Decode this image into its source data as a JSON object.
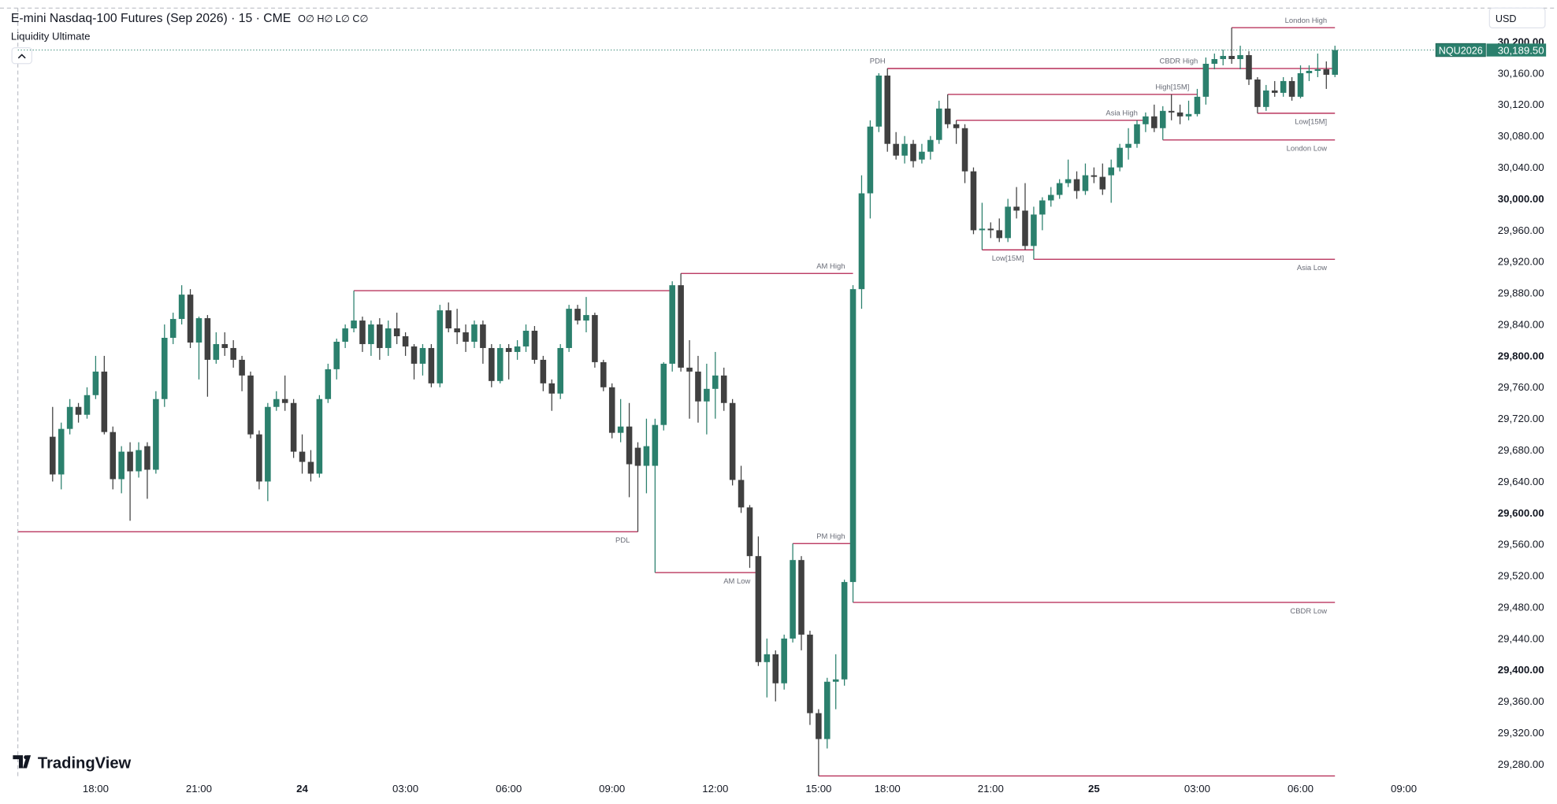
{
  "chart_data": {
    "type": "candlestick",
    "title": "E-mini Nasdaq-100 Futures (Sep 2026) · 15 · CME",
    "ohlc_legend": "O∅ H∅ L∅ C∅",
    "indicator": "Liquidity Ultimate",
    "currency": "USD",
    "brand": "TradingView",
    "up_color": "#2b806d",
    "down_color": "#404040",
    "level_color": "#b3234f",
    "open": [
      29697,
      29649,
      29707,
      29735,
      29725,
      29750,
      29780,
      29703,
      29643,
      29678,
      29653,
      29685,
      29655,
      29745,
      29823,
      29847,
      29878,
      29817,
      29848,
      29795,
      29815,
      29810,
      29795,
      29775,
      29700,
      29640,
      29735,
      29745,
      29740,
      29678,
      29665,
      29650,
      29745,
      29783,
      29818,
      29835,
      29845,
      29815,
      29840,
      29810,
      29835,
      29825,
      29812,
      29790,
      29810,
      29765,
      29858,
      29835,
      29830,
      29818,
      29840,
      29810,
      29768,
      29810,
      29805,
      29812,
      29832,
      29795,
      29765,
      29752,
      29810,
      29860,
      29845,
      29852,
      29792,
      29760,
      29702,
      29710,
      29683,
      29660,
      29660,
      29712,
      29790,
      29890,
      29785,
      29780,
      29742,
      29758,
      29775,
      29740,
      29642,
      29607,
      29545,
      29410,
      29420,
      29383,
      29440,
      29540,
      29445,
      29345,
      29312,
      29385,
      29388,
      29512,
      29885,
      30007,
      30092,
      30157,
      30070,
      30055,
      30070,
      30050,
      30060,
      30075,
      30115,
      30095,
      30090,
      30035,
      29960,
      29962,
      29960,
      29950,
      29990,
      29985,
      29940,
      29980,
      29998,
      30005,
      30020,
      30025,
      30010,
      30030,
      30028,
      30030,
      30040,
      30065,
      30070,
      30095,
      30105,
      30090,
      30112,
      30110,
      30105,
      30108,
      30130,
      30172,
      30178,
      30182,
      30178,
      30183,
      30152,
      30117,
      30138,
      30135,
      30150,
      30130,
      30160,
      30163,
      30165,
      30158
    ],
    "high": [
      29735,
      29715,
      29745,
      29740,
      29760,
      29800,
      29800,
      29710,
      29685,
      29690,
      29690,
      29690,
      29755,
      29840,
      29855,
      29890,
      29885,
      29850,
      29852,
      29830,
      29830,
      29820,
      29800,
      29780,
      29705,
      29740,
      29755,
      29775,
      29745,
      29700,
      29680,
      29750,
      29790,
      29822,
      29840,
      29883,
      29850,
      29845,
      29848,
      29845,
      29855,
      29830,
      29815,
      29815,
      29815,
      29865,
      29868,
      29860,
      29840,
      29845,
      29845,
      29815,
      29815,
      29815,
      29820,
      29840,
      29838,
      29800,
      29770,
      29815,
      29865,
      29865,
      29875,
      29855,
      29795,
      29765,
      29745,
      29740,
      29690,
      29720,
      29720,
      29792,
      29895,
      29905,
      29820,
      29800,
      29790,
      29805,
      29785,
      29745,
      29660,
      29610,
      29570,
      29440,
      29425,
      29445,
      29561,
      29545,
      29450,
      29350,
      29390,
      29420,
      29515,
      29890,
      30030,
      30100,
      30160,
      30166,
      30085,
      30080,
      30075,
      30070,
      30080,
      30125,
      30133,
      30100,
      30095,
      30040,
      29995,
      29970,
      29975,
      30000,
      30015,
      30020,
      29990,
      30002,
      30015,
      30025,
      30050,
      30035,
      30045,
      30040,
      30045,
      30050,
      30070,
      30090,
      30100,
      30110,
      30120,
      30118,
      30133,
      30120,
      30125,
      30140,
      30180,
      30185,
      30190,
      30218,
      30195,
      30188,
      30155,
      30145,
      30150,
      30155,
      30155,
      30170,
      30170,
      30185,
      30175,
      30195
    ],
    "low": [
      29640,
      29630,
      29700,
      29715,
      29720,
      29745,
      29700,
      29630,
      29625,
      29590,
      29645,
      29618,
      29650,
      29735,
      29815,
      29840,
      29810,
      29770,
      29748,
      29790,
      29800,
      29785,
      29755,
      29695,
      29630,
      29615,
      29730,
      29730,
      29670,
      29650,
      29640,
      29645,
      29740,
      29770,
      29810,
      29830,
      29805,
      29800,
      29795,
      29800,
      29815,
      29800,
      29770,
      29775,
      29760,
      29760,
      29830,
      29815,
      29805,
      29810,
      29790,
      29760,
      29765,
      29770,
      29795,
      29805,
      29790,
      29755,
      29730,
      29745,
      29805,
      29840,
      29830,
      29785,
      29755,
      29695,
      29690,
      29620,
      29576,
      29625,
      29524,
      29705,
      29780,
      29780,
      29720,
      29715,
      29700,
      29720,
      29730,
      29635,
      29600,
      29530,
      29405,
      29365,
      29360,
      29375,
      29435,
      29425,
      29330,
      29265,
      29300,
      29350,
      29380,
      29486,
      29860,
      29975,
      30085,
      30060,
      30050,
      30045,
      30040,
      30045,
      30050,
      30070,
      30090,
      30070,
      30020,
      29955,
      29935,
      29950,
      29945,
      29945,
      29975,
      29935,
      29923,
      29960,
      29990,
      30000,
      30015,
      30000,
      30005,
      30020,
      30005,
      29995,
      30035,
      30050,
      30065,
      30085,
      30085,
      30075,
      30100,
      30095,
      30100,
      30105,
      30120,
      30165,
      30170,
      30172,
      30165,
      30145,
      30109,
      30112,
      30130,
      30130,
      30125,
      30128,
      30150,
      30155,
      30140,
      30155
    ],
    "close": [
      29649,
      29707,
      29735,
      29725,
      29750,
      29780,
      29703,
      29643,
      29678,
      29653,
      29680,
      29655,
      29745,
      29823,
      29847,
      29878,
      29817,
      29848,
      29795,
      29815,
      29810,
      29795,
      29775,
      29700,
      29640,
      29735,
      29745,
      29740,
      29678,
      29665,
      29650,
      29745,
      29783,
      29818,
      29835,
      29845,
      29815,
      29840,
      29810,
      29835,
      29825,
      29812,
      29790,
      29810,
      29765,
      29858,
      29835,
      29830,
      29818,
      29840,
      29810,
      29768,
      29810,
      29805,
      29812,
      29832,
      29795,
      29765,
      29752,
      29810,
      29860,
      29845,
      29852,
      29792,
      29760,
      29702,
      29710,
      29662,
      29660,
      29685,
      29712,
      29790,
      29890,
      29785,
      29780,
      29742,
      29758,
      29775,
      29740,
      29642,
      29607,
      29545,
      29410,
      29420,
      29383,
      29440,
      29540,
      29445,
      29345,
      29312,
      29385,
      29388,
      29512,
      29885,
      30007,
      30092,
      30157,
      30070,
      30055,
      30070,
      30048,
      30060,
      30075,
      30115,
      30095,
      30090,
      30035,
      29960,
      29962,
      29960,
      29950,
      29990,
      29985,
      29940,
      29980,
      29998,
      30005,
      30020,
      30025,
      30010,
      30030,
      30028,
      30012,
      30040,
      30065,
      30070,
      30095,
      30105,
      30090,
      30112,
      30110,
      30105,
      30108,
      30130,
      30172,
      30178,
      30182,
      30178,
      30183,
      30152,
      30117,
      30138,
      30135,
      30150,
      30130,
      30160,
      30163,
      30165,
      30158,
      30189.5
    ],
    "levels": [
      {
        "value": 29883,
        "x": [
          35,
          72
        ]
      },
      {
        "label": "London High",
        "value": 30218,
        "x": [
          137,
          149
        ]
      },
      {
        "label": "PDH",
        "value": 30166,
        "x": [
          97,
          149
        ]
      },
      {
        "label": "CBDR High",
        "value": 30166,
        "x": [
          97,
          134
        ]
      },
      {
        "label": "High[15M]",
        "value": 30133,
        "x": [
          104,
          133
        ]
      },
      {
        "label": "Asia High",
        "value": 30100,
        "x": [
          105,
          127
        ]
      },
      {
        "label": "Low[15M]",
        "value": 30109,
        "x": [
          140,
          149
        ]
      },
      {
        "label": "London Low",
        "value": 30075,
        "x": [
          129,
          149
        ]
      },
      {
        "label": "AM High",
        "value": 29905,
        "x": [
          73,
          93
        ]
      },
      {
        "label": "Low[15M]",
        "value": 29935,
        "x": [
          108,
          114
        ]
      },
      {
        "label": "Asia Low",
        "value": 29923,
        "x": [
          114,
          149
        ]
      },
      {
        "label": "PDL",
        "value": 29576,
        "x": [
          -4,
          68
        ]
      },
      {
        "label": "AM Low",
        "value": 29524,
        "x": [
          70,
          82
        ]
      },
      {
        "label": "PM High",
        "value": 29561,
        "x": [
          86,
          93
        ]
      },
      {
        "label": "CBDR Low",
        "value": 29486,
        "x": [
          93,
          149
        ]
      },
      {
        "value": 29265,
        "x": [
          89,
          149
        ]
      }
    ],
    "price_tag": {
      "symbol": "NQU2026",
      "value": 30189.5,
      "label": "30,189.50"
    },
    "ylim": [
      29261,
      30243
    ],
    "yticks": [
      {
        "value": 29280,
        "label": "29,280.00"
      },
      {
        "value": 29320,
        "label": "29,320.00"
      },
      {
        "value": 29360,
        "label": "29,360.00"
      },
      {
        "value": 29400,
        "label": "29,400.00"
      },
      {
        "value": 29440,
        "label": "29,440.00"
      },
      {
        "value": 29480,
        "label": "29,480.00"
      },
      {
        "value": 29520,
        "label": "29,520.00"
      },
      {
        "value": 29560,
        "label": "29,560.00"
      },
      {
        "value": 29600,
        "label": "29,600.00"
      },
      {
        "value": 29640,
        "label": "29,640.00"
      },
      {
        "value": 29680,
        "label": "29,680.00"
      },
      {
        "value": 29720,
        "label": "29,720.00"
      },
      {
        "value": 29760,
        "label": "29,760.00"
      },
      {
        "value": 29800,
        "label": "29,800.00"
      },
      {
        "value": 29840,
        "label": "29,840.00"
      },
      {
        "value": 29880,
        "label": "29,880.00"
      },
      {
        "value": 29920,
        "label": "29,920.00"
      },
      {
        "value": 29960,
        "label": "29,960.00"
      },
      {
        "value": 30000,
        "label": "30,000.00"
      },
      {
        "value": 30040,
        "label": "30,040.00"
      },
      {
        "value": 30080,
        "label": "30,080.00"
      },
      {
        "value": 30120,
        "label": "30,120.00"
      },
      {
        "value": 30160,
        "label": "30,160.00"
      },
      {
        "value": 30200,
        "label": "30,200.00"
      }
    ],
    "xticks": [
      {
        "value": 5,
        "label": "18:00"
      },
      {
        "value": 17,
        "label": "21:00"
      },
      {
        "value": 29,
        "label": "24"
      },
      {
        "value": 41,
        "label": "03:00"
      },
      {
        "value": 53,
        "label": "06:00"
      },
      {
        "value": 65,
        "label": "09:00"
      },
      {
        "value": 77,
        "label": "12:00"
      },
      {
        "value": 89,
        "label": "15:00"
      },
      {
        "value": 97,
        "label": "18:00"
      },
      {
        "value": 109,
        "label": "21:00"
      },
      {
        "value": 121,
        "label": "25"
      },
      {
        "value": 133,
        "label": "03:00"
      },
      {
        "value": 145,
        "label": "06:00"
      },
      {
        "value": 157,
        "label": "09:00"
      }
    ]
  }
}
